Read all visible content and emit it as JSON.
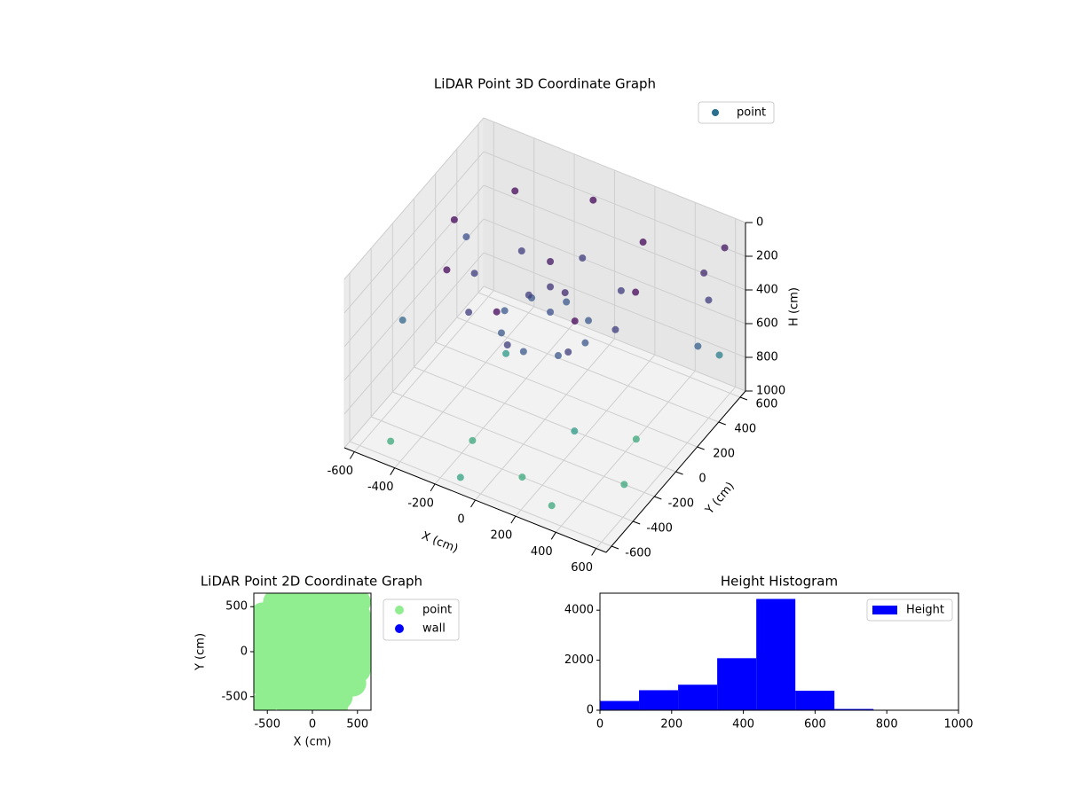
{
  "chart_data": [
    {
      "type": "scatter3d",
      "title": "LiDAR Point 3D Coordinate Graph",
      "xlabel": "X (cm)",
      "ylabel": "Y (cm)",
      "zlabel": "H (cm)",
      "xlim": [
        -650,
        650
      ],
      "ylim": [
        -650,
        650
      ],
      "zlim": [
        0,
        1000
      ],
      "zinvert": true,
      "xticks": [
        -600,
        -400,
        -200,
        0,
        200,
        400,
        600
      ],
      "yticks": [
        -600,
        -400,
        -200,
        0,
        200,
        400,
        600
      ],
      "zticks": [
        0,
        200,
        400,
        600,
        800,
        1000
      ],
      "cmap": "viridis",
      "grid": true,
      "legend": "upper right",
      "series": [
        {
          "name": "point",
          "color": "#2a6f8e",
          "x": [
            450,
            318,
            0,
            -318,
            -450,
            -318,
            0,
            318,
            350,
            247,
            0,
            -247,
            -350,
            -247,
            0,
            247,
            200,
            141,
            0,
            -141,
            -200,
            -141,
            0,
            141,
            0,
            0,
            0,
            100,
            -80,
            600,
            600,
            600,
            600,
            550,
            -600,
            -550,
            -500,
            -200,
            100,
            300,
            400,
            200,
            -300,
            500,
            -100
          ],
          "y": [
            0,
            318,
            450,
            318,
            0,
            -318,
            -450,
            -318,
            0,
            247,
            350,
            247,
            0,
            -247,
            -350,
            -247,
            0,
            141,
            200,
            141,
            0,
            -141,
            -200,
            -141,
            50,
            50,
            50,
            0,
            0,
            550,
            400,
            300,
            500,
            450,
            -200,
            300,
            -500,
            -300,
            -400,
            -500,
            100,
            -100,
            200,
            -200,
            -600
          ],
          "z": [
            30,
            30,
            30,
            30,
            30,
            30,
            30,
            30,
            300,
            300,
            300,
            300,
            300,
            300,
            300,
            300,
            450,
            450,
            450,
            450,
            450,
            450,
            450,
            450,
            100,
            250,
            400,
            200,
            300,
            100,
            300,
            500,
            700,
            200,
            550,
            400,
            1000,
            1000,
            1000,
            1000,
            1000,
            900,
            900,
            1000,
            950
          ]
        }
      ]
    },
    {
      "type": "scatter",
      "title": "LiDAR Point 2D Coordinate Graph",
      "xlabel": "X (cm)",
      "ylabel": "Y (cm)",
      "xlim": [
        -650,
        650
      ],
      "ylim": [
        -650,
        650
      ],
      "xticks": [
        -500,
        0,
        500
      ],
      "yticks": [
        -500,
        0,
        500
      ],
      "legend": "outside right",
      "series": [
        {
          "name": "point",
          "color": "#90ee90",
          "x": [
            -400,
            -250,
            -100,
            50,
            200,
            350,
            500,
            -550,
            -400,
            -250,
            -100,
            50,
            200,
            350,
            500,
            -600,
            -450,
            -300,
            -150,
            0,
            150,
            300,
            450,
            550,
            -600,
            -450,
            -300,
            -150,
            0,
            150,
            300,
            450,
            550,
            -600,
            -450,
            -300,
            -150,
            0,
            150,
            300,
            450,
            550,
            -550,
            -400,
            -250,
            -100,
            50,
            200,
            350,
            500,
            -550,
            -400,
            -250,
            -100,
            50,
            200,
            350,
            450,
            -450,
            -300,
            -150,
            0,
            150,
            300,
            -550,
            -250,
            -100,
            100,
            250
          ],
          "y": [
            550,
            550,
            550,
            550,
            550,
            550,
            550,
            400,
            400,
            400,
            400,
            400,
            400,
            400,
            400,
            250,
            250,
            250,
            250,
            250,
            250,
            250,
            250,
            250,
            100,
            100,
            100,
            100,
            100,
            100,
            100,
            100,
            100,
            -50,
            -50,
            -50,
            -50,
            -50,
            -50,
            -50,
            -50,
            -50,
            -200,
            -200,
            -200,
            -200,
            -200,
            -200,
            -200,
            -200,
            -350,
            -350,
            -350,
            -350,
            -350,
            -350,
            -350,
            -350,
            -500,
            -500,
            -500,
            -500,
            -500,
            -500,
            -600,
            -600,
            -600,
            -600,
            -600
          ]
        },
        {
          "name": "wall",
          "color": "#0000ff",
          "x": [],
          "y": []
        }
      ]
    },
    {
      "type": "histogram",
      "title": "Height Histogram",
      "xlim": [
        0,
        1000
      ],
      "ylim": [
        0,
        4680
      ],
      "xticks": [
        0,
        200,
        400,
        600,
        800,
        1000
      ],
      "yticks": [
        0,
        2000,
        4000
      ],
      "legend": "upper right",
      "series": [
        {
          "name": "Height",
          "color": "#0000ff",
          "bins": [
            0,
            109,
            218,
            327,
            436,
            545,
            654,
            763,
            872,
            981,
            1090
          ],
          "values": [
            370,
            800,
            1020,
            2080,
            4450,
            780,
            50,
            15,
            10,
            5
          ]
        }
      ]
    }
  ]
}
